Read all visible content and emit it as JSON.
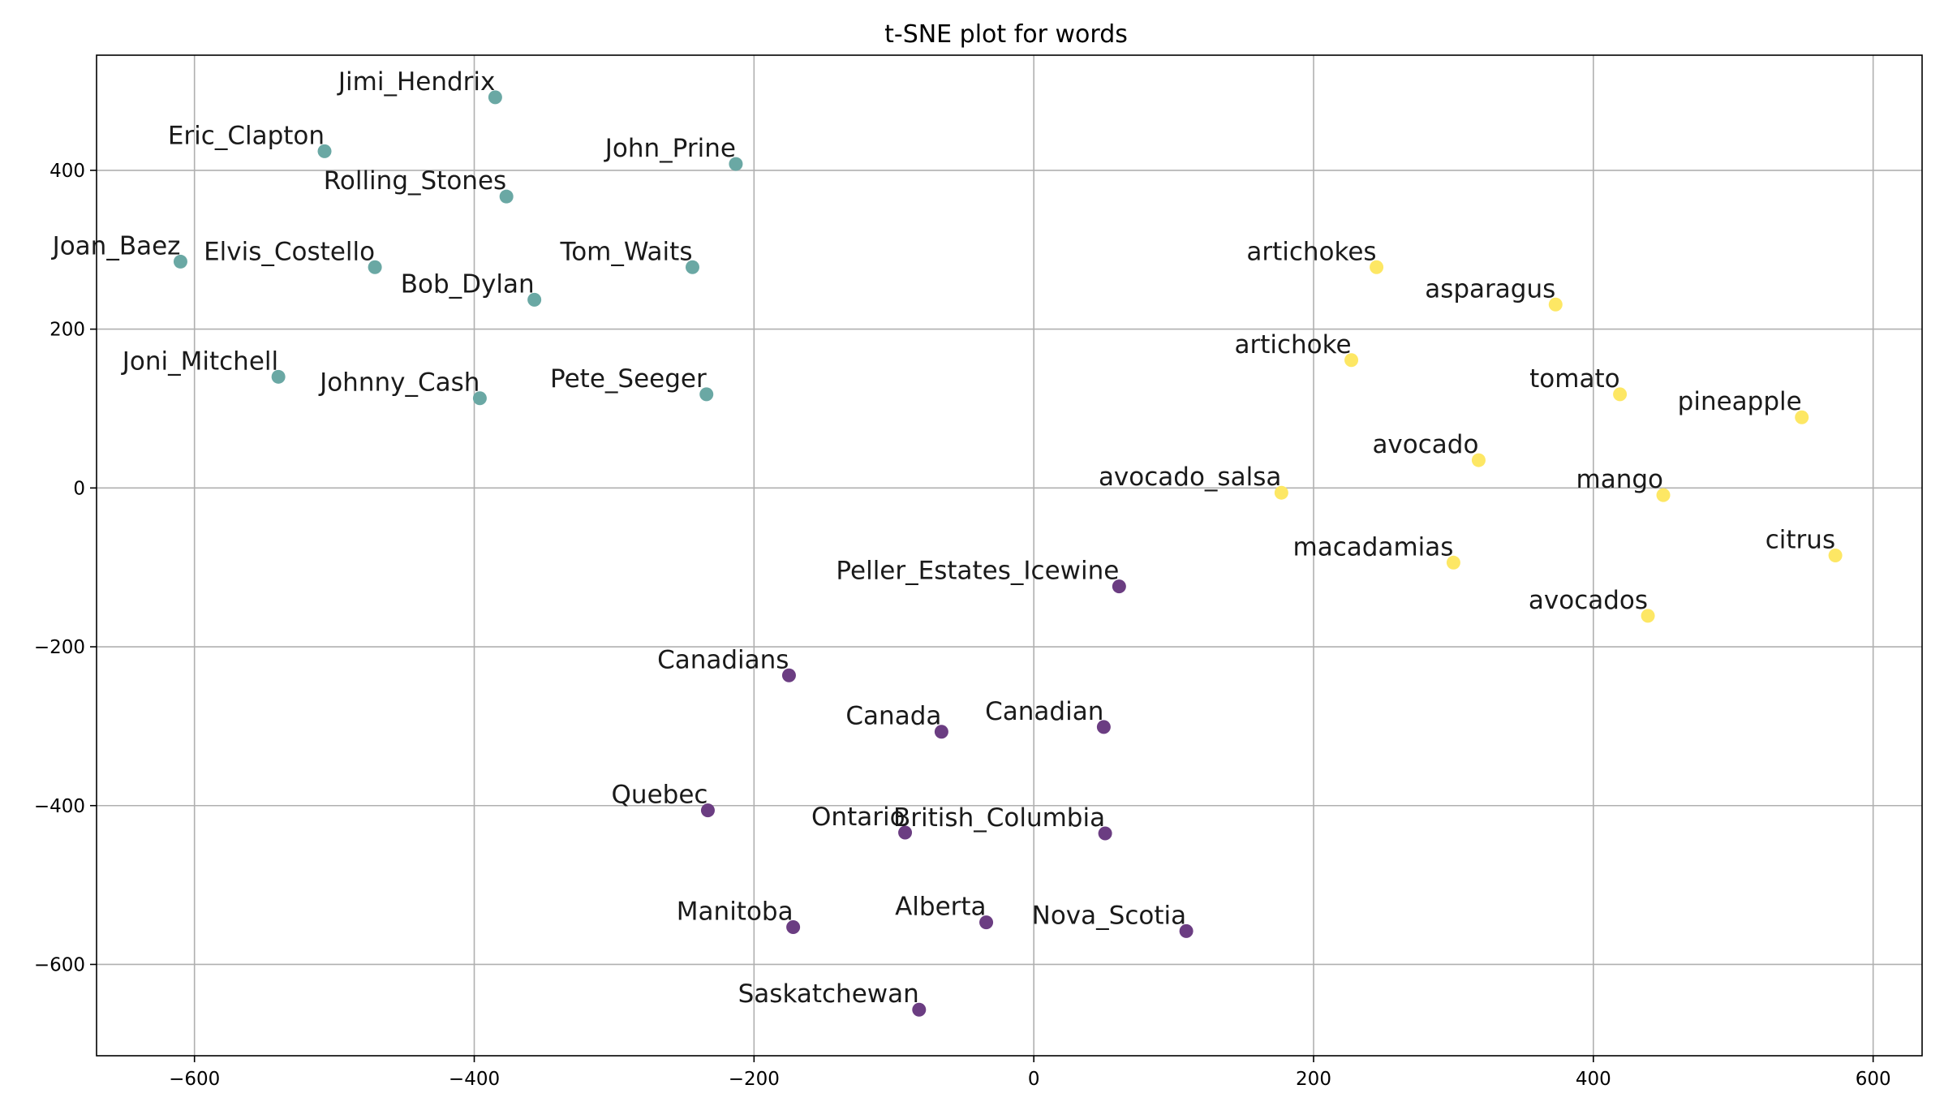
{
  "chart_data": {
    "type": "scatter",
    "title": "t-SNE plot for words",
    "xlabel": "",
    "ylabel": "",
    "xlim": [
      -670,
      635
    ],
    "ylim": [
      -715,
      545
    ],
    "xticks": [
      -600,
      -400,
      -200,
      0,
      200,
      400,
      600
    ],
    "yticks": [
      -600,
      -400,
      -200,
      0,
      200,
      400
    ],
    "grid": true,
    "colors": {
      "musicians": "#6aa8a4",
      "food": "#fde764",
      "canada": "#6b3d82"
    },
    "points": [
      {
        "label": "Jimi_Hendrix",
        "x": -385,
        "y": 492,
        "group": "musicians"
      },
      {
        "label": "Eric_Clapton",
        "x": -507,
        "y": 424,
        "group": "musicians"
      },
      {
        "label": "John_Prine",
        "x": -213,
        "y": 408,
        "group": "musicians"
      },
      {
        "label": "Rolling_Stones",
        "x": -377,
        "y": 367,
        "group": "musicians"
      },
      {
        "label": "Joan_Baez",
        "x": -610,
        "y": 285,
        "group": "musicians"
      },
      {
        "label": "Elvis_Costello",
        "x": -471,
        "y": 278,
        "group": "musicians"
      },
      {
        "label": "Tom_Waits",
        "x": -244,
        "y": 278,
        "group": "musicians"
      },
      {
        "label": "Bob_Dylan",
        "x": -357,
        "y": 237,
        "group": "musicians"
      },
      {
        "label": "Joni_Mitchell",
        "x": -540,
        "y": 140,
        "group": "musicians"
      },
      {
        "label": "Johnny_Cash",
        "x": -396,
        "y": 113,
        "group": "musicians"
      },
      {
        "label": "Pete_Seeger",
        "x": -234,
        "y": 118,
        "group": "musicians"
      },
      {
        "label": "artichokes",
        "x": 245,
        "y": 278,
        "group": "food"
      },
      {
        "label": "asparagus",
        "x": 373,
        "y": 231,
        "group": "food"
      },
      {
        "label": "artichoke",
        "x": 227,
        "y": 161,
        "group": "food"
      },
      {
        "label": "tomato",
        "x": 419,
        "y": 118,
        "group": "food"
      },
      {
        "label": "pineapple",
        "x": 549,
        "y": 89,
        "group": "food"
      },
      {
        "label": "avocado",
        "x": 318,
        "y": 35,
        "group": "food"
      },
      {
        "label": "avocado_salsa",
        "x": 177,
        "y": -6,
        "group": "food"
      },
      {
        "label": "mango",
        "x": 450,
        "y": -9,
        "group": "food"
      },
      {
        "label": "macadamias",
        "x": 300,
        "y": -94,
        "group": "food"
      },
      {
        "label": "citrus",
        "x": 573,
        "y": -85,
        "group": "food"
      },
      {
        "label": "avocados",
        "x": 439,
        "y": -161,
        "group": "food"
      },
      {
        "label": "Peller_Estates_Icewine",
        "x": 61,
        "y": -124,
        "group": "canada"
      },
      {
        "label": "Canadians",
        "x": -175,
        "y": -236,
        "group": "canada"
      },
      {
        "label": "Canada",
        "x": -66,
        "y": -307,
        "group": "canada"
      },
      {
        "label": "Canadian",
        "x": 50,
        "y": -301,
        "group": "canada"
      },
      {
        "label": "Quebec",
        "x": -233,
        "y": -406,
        "group": "canada"
      },
      {
        "label": "Ontario",
        "x": -92,
        "y": -434,
        "group": "canada"
      },
      {
        "label": "British_Columbia",
        "x": 51,
        "y": -435,
        "group": "canada"
      },
      {
        "label": "Manitoba",
        "x": -172,
        "y": -553,
        "group": "canada"
      },
      {
        "label": "Alberta",
        "x": -34,
        "y": -547,
        "group": "canada"
      },
      {
        "label": "Nova_Scotia",
        "x": 109,
        "y": -558,
        "group": "canada"
      },
      {
        "label": "Saskatchewan",
        "x": -82,
        "y": -657,
        "group": "canada"
      }
    ]
  }
}
